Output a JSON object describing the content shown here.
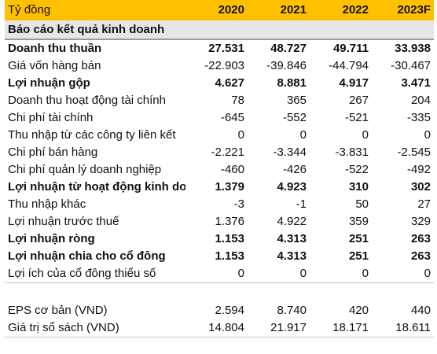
{
  "table": {
    "header": {
      "label": "Tỷ đồng",
      "years": [
        "2020",
        "2021",
        "2022",
        "2023F"
      ]
    },
    "section_title": "Báo cáo kết quả kinh doanh",
    "rows": [
      {
        "label": "Doanh thu thuần",
        "bold": true,
        "values": [
          "27.531",
          "48.727",
          "49.711",
          "33.938"
        ]
      },
      {
        "label": "Giá vốn hàng bán",
        "bold": false,
        "values": [
          "-22.903",
          "-39.846",
          "-44.794",
          "-30.467"
        ]
      },
      {
        "label": "Lợi nhuận gộp",
        "bold": true,
        "values": [
          "4.627",
          "8.881",
          "4.917",
          "3.471"
        ]
      },
      {
        "label": "Doanh thu hoạt động tài chính",
        "bold": false,
        "values": [
          "78",
          "365",
          "267",
          "204"
        ]
      },
      {
        "label": "Chi phí tài chính",
        "bold": false,
        "values": [
          "-645",
          "-552",
          "-521",
          "-335"
        ]
      },
      {
        "label": "Thu nhập từ các công ty liên kết",
        "bold": false,
        "values": [
          "0",
          "0",
          "0",
          "0"
        ]
      },
      {
        "label": "Chi phí bán hàng",
        "bold": false,
        "values": [
          "-2.221",
          "-3.344",
          "-3.831",
          "-2.545"
        ]
      },
      {
        "label": "Chi phí quản lý doanh nghiệp",
        "bold": false,
        "values": [
          "-460",
          "-426",
          "-522",
          "-492"
        ]
      },
      {
        "label": "Lợi nhuận từ hoạt động kinh doanh",
        "bold": true,
        "values": [
          "1.379",
          "4.923",
          "310",
          "302"
        ]
      },
      {
        "label": "Thu nhập khác",
        "bold": false,
        "values": [
          "-3",
          "-1",
          "50",
          "27"
        ]
      },
      {
        "label": "Lợi nhuận trước thuế",
        "bold": false,
        "values": [
          "1.376",
          "4.922",
          "359",
          "329"
        ]
      },
      {
        "label": "Lợi nhuận ròng",
        "bold": true,
        "values": [
          "1.153",
          "4.313",
          "251",
          "263"
        ]
      },
      {
        "label": "Lợi nhuận chia cho cổ đông",
        "bold": true,
        "values": [
          "1.153",
          "4.313",
          "251",
          "263"
        ]
      },
      {
        "label": "Lợi ích của cổ đông thiểu số",
        "bold": false,
        "values": [
          "0",
          "0",
          "0",
          "0"
        ]
      }
    ],
    "per_share_rows": [
      {
        "label": "EPS cơ bản (VND)",
        "bold": false,
        "values": [
          "2.594",
          "8.740",
          "420",
          "440"
        ]
      },
      {
        "label": "Giá trị sổ sách (VND)",
        "bold": false,
        "values": [
          "14.804",
          "21.917",
          "18.171",
          "18.611"
        ]
      }
    ],
    "colors": {
      "header_bg": "#ffc000",
      "section_bg": "#e6e6e6",
      "rule": "#c8c8c8"
    }
  }
}
